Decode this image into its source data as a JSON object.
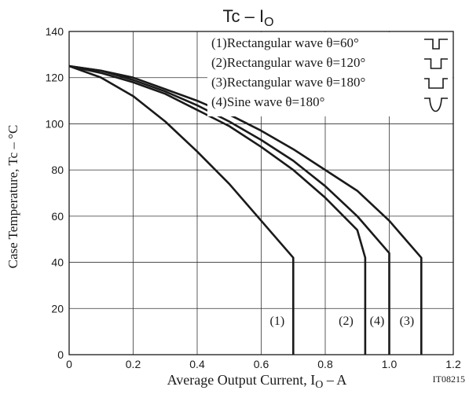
{
  "chart_data": {
    "type": "line",
    "title": "Tc – IO",
    "title_main": "Tc – I",
    "title_sub": "O",
    "xlabel": "Average Output Current, IO – A",
    "xlabel_main": "Average Output Current, I",
    "xlabel_sub": "O",
    "xlabel_tail": " – A",
    "ylabel": "Case Temperature, Tc – °C",
    "xlim": [
      0,
      1.2
    ],
    "ylim": [
      0,
      140
    ],
    "x_ticks": [
      "0",
      "0.2",
      "0.4",
      "0.6",
      "0.8",
      "1.0",
      "1.2"
    ],
    "y_ticks": [
      "0",
      "20",
      "40",
      "60",
      "80",
      "100",
      "120",
      "140"
    ],
    "grid": true,
    "legend_position": "top-right",
    "legend": [
      "(1)Rectangular wave θ=60°",
      "(2)Rectangular wave θ=120°",
      "(3)Rectangular wave θ=180°",
      "(4)Sine wave θ=180°"
    ],
    "legend_symbols": [
      "rect-60",
      "rect-120",
      "rect-180",
      "sine-180"
    ],
    "line_color": "#1a1a1a",
    "series": [
      {
        "label": "(1)",
        "x": [
          0,
          0.1,
          0.2,
          0.3,
          0.4,
          0.5,
          0.6,
          0.7,
          0.7
        ],
        "y": [
          125,
          120,
          112,
          101,
          88,
          74,
          58,
          42,
          0
        ]
      },
      {
        "label": "(2)",
        "x": [
          0,
          0.1,
          0.2,
          0.3,
          0.4,
          0.5,
          0.6,
          0.7,
          0.8,
          0.9,
          0.925,
          0.925
        ],
        "y": [
          125,
          122,
          118,
          113,
          106,
          99,
          90,
          80,
          68,
          54,
          42,
          0
        ]
      },
      {
        "label": "(3)",
        "x": [
          0,
          0.1,
          0.2,
          0.3,
          0.4,
          0.5,
          0.6,
          0.7,
          0.8,
          0.9,
          1.0,
          1.1,
          1.1
        ],
        "y": [
          125,
          123,
          120,
          115,
          110,
          104,
          97,
          89,
          80,
          71,
          58,
          42,
          0
        ]
      },
      {
        "label": "(4)",
        "x": [
          0,
          0.1,
          0.2,
          0.3,
          0.4,
          0.5,
          0.6,
          0.7,
          0.8,
          0.9,
          1.0,
          1.0
        ],
        "y": [
          125,
          123,
          119,
          114,
          108,
          101,
          93,
          84,
          73,
          60,
          44,
          0
        ]
      }
    ],
    "series_label_positions": [
      {
        "text": "(1)",
        "x": 0.65,
        "y": 13
      },
      {
        "text": "(2)",
        "x": 0.865,
        "y": 13
      },
      {
        "text": "(4)",
        "x": 0.962,
        "y": 13
      },
      {
        "text": "(3)",
        "x": 1.055,
        "y": 13
      }
    ],
    "figure_code": "IT08215"
  }
}
